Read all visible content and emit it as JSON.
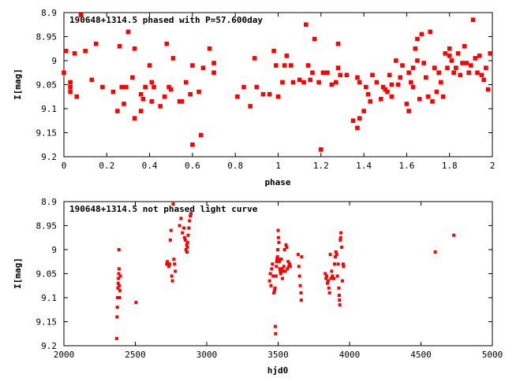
{
  "marker_color": "#ff0000",
  "chart_data": [
    {
      "type": "scatter",
      "title": "190648+1314.5 phased with P=57.600day",
      "xlabel": "phase",
      "ylabel": "I[mag]",
      "xlim": [
        0,
        2
      ],
      "ylim": [
        9.2,
        8.9
      ],
      "y_inverted": true,
      "xticks": [
        "0",
        "0.2",
        "0.4",
        "0.6",
        "0.8",
        "1",
        "1.2",
        "1.4",
        "1.6",
        "1.8",
        "2"
      ],
      "yticks": [
        "8.9",
        "8.95",
        "9",
        "9.05",
        "9.1",
        "9.15",
        "9.2"
      ],
      "grid": false,
      "legend": "none",
      "points": [
        [
          0.0,
          9.025
        ],
        [
          0.01,
          8.98
        ],
        [
          0.03,
          9.045
        ],
        [
          0.03,
          9.055
        ],
        [
          0.03,
          9.065
        ],
        [
          0.05,
          8.985
        ],
        [
          0.06,
          9.075
        ],
        [
          0.08,
          8.905
        ],
        [
          0.1,
          8.98
        ],
        [
          0.13,
          9.04
        ],
        [
          0.15,
          8.965
        ],
        [
          0.18,
          9.055
        ],
        [
          0.23,
          9.065
        ],
        [
          0.25,
          9.105
        ],
        [
          0.26,
          8.97
        ],
        [
          0.27,
          9.055
        ],
        [
          0.28,
          9.09
        ],
        [
          0.29,
          9.055
        ],
        [
          0.3,
          8.94
        ],
        [
          0.32,
          9.035
        ],
        [
          0.33,
          9.12
        ],
        [
          0.33,
          8.975
        ],
        [
          0.36,
          9.07
        ],
        [
          0.36,
          9.105
        ],
        [
          0.37,
          9.08
        ],
        [
          0.38,
          9.055
        ],
        [
          0.4,
          9.01
        ],
        [
          0.41,
          9.085
        ],
        [
          0.41,
          9.045
        ],
        [
          0.42,
          9.055
        ],
        [
          0.45,
          9.095
        ],
        [
          0.47,
          9.075
        ],
        [
          0.48,
          8.965
        ],
        [
          0.49,
          9.055
        ],
        [
          0.5,
          9.06
        ],
        [
          0.51,
          8.995
        ],
        [
          0.54,
          9.085
        ],
        [
          0.55,
          9.085
        ],
        [
          0.57,
          9.045
        ],
        [
          0.59,
          9.07
        ],
        [
          0.6,
          9.175
        ],
        [
          0.6,
          9.01
        ],
        [
          0.63,
          9.065
        ],
        [
          0.64,
          9.155
        ],
        [
          0.65,
          9.015
        ],
        [
          0.68,
          8.975
        ],
        [
          0.7,
          9.025
        ],
        [
          0.7,
          9.005
        ],
        [
          0.81,
          9.075
        ],
        [
          0.84,
          9.055
        ],
        [
          0.87,
          9.095
        ],
        [
          0.89,
          8.995
        ],
        [
          0.9,
          9.055
        ],
        [
          0.93,
          9.07
        ],
        [
          0.96,
          9.07
        ],
        [
          0.98,
          8.98
        ],
        [
          0.99,
          9.01
        ],
        [
          1.0,
          9.075
        ],
        [
          1.02,
          9.045
        ],
        [
          1.03,
          9.01
        ],
        [
          1.04,
          8.99
        ],
        [
          1.06,
          9.01
        ],
        [
          1.07,
          9.045
        ],
        [
          1.1,
          9.04
        ],
        [
          1.12,
          9.045
        ],
        [
          1.13,
          8.925
        ],
        [
          1.14,
          9.01
        ],
        [
          1.15,
          9.04
        ],
        [
          1.16,
          9.025
        ],
        [
          1.17,
          8.955
        ],
        [
          1.19,
          9.045
        ],
        [
          1.2,
          9.185
        ],
        [
          1.21,
          9.025
        ],
        [
          1.23,
          9.025
        ],
        [
          1.25,
          9.05
        ],
        [
          1.27,
          9.045
        ],
        [
          1.28,
          9.015
        ],
        [
          1.28,
          8.965
        ],
        [
          1.29,
          9.03
        ],
        [
          1.32,
          9.03
        ],
        [
          1.35,
          9.125
        ],
        [
          1.37,
          9.14
        ],
        [
          1.37,
          9.035
        ],
        [
          1.38,
          9.045
        ],
        [
          1.38,
          9.12
        ],
        [
          1.4,
          9.105
        ],
        [
          1.41,
          9.055
        ],
        [
          1.42,
          9.07
        ],
        [
          1.43,
          9.085
        ],
        [
          1.44,
          9.03
        ],
        [
          1.46,
          9.045
        ],
        [
          1.48,
          9.08
        ],
        [
          1.49,
          9.055
        ],
        [
          1.5,
          9.06
        ],
        [
          1.51,
          9.065
        ],
        [
          1.52,
          9.03
        ],
        [
          1.53,
          9.05
        ],
        [
          1.53,
          9.075
        ],
        [
          1.55,
          9.0
        ],
        [
          1.56,
          9.05
        ],
        [
          1.57,
          9.035
        ],
        [
          1.58,
          9.01
        ],
        [
          1.6,
          9.09
        ],
        [
          1.61,
          9.105
        ],
        [
          1.61,
          9.025
        ],
        [
          1.62,
          9.045
        ],
        [
          1.63,
          9.055
        ],
        [
          1.63,
          9.015
        ],
        [
          1.64,
          8.975
        ],
        [
          1.65,
          9.0
        ],
        [
          1.65,
          8.955
        ],
        [
          1.66,
          9.08
        ],
        [
          1.67,
          8.945
        ],
        [
          1.68,
          9.005
        ],
        [
          1.69,
          9.035
        ],
        [
          1.7,
          9.075
        ],
        [
          1.71,
          8.94
        ],
        [
          1.72,
          9.085
        ],
        [
          1.73,
          9.015
        ],
        [
          1.74,
          9.065
        ],
        [
          1.75,
          9.025
        ],
        [
          1.76,
          9.045
        ],
        [
          1.77,
          9.075
        ],
        [
          1.78,
          8.985
        ],
        [
          1.79,
          9.015
        ],
        [
          1.8,
          8.975
        ],
        [
          1.8,
          8.99
        ],
        [
          1.81,
          9.0
        ],
        [
          1.82,
          9.025
        ],
        [
          1.83,
          9.015
        ],
        [
          1.84,
          8.985
        ],
        [
          1.85,
          9.03
        ],
        [
          1.86,
          9.005
        ],
        [
          1.87,
          8.97
        ],
        [
          1.88,
          9.005
        ],
        [
          1.89,
          9.025
        ],
        [
          1.9,
          9.01
        ],
        [
          1.91,
          8.915
        ],
        [
          1.92,
          8.995
        ],
        [
          1.93,
          9.025
        ],
        [
          1.94,
          8.99
        ],
        [
          1.95,
          9.03
        ],
        [
          1.96,
          9.04
        ],
        [
          1.97,
          9.015
        ],
        [
          1.98,
          9.06
        ],
        [
          1.99,
          8.985
        ]
      ]
    },
    {
      "type": "scatter",
      "title": "190648+1314.5 not phased light curve",
      "xlabel": "hjd0",
      "ylabel": "I[mag]",
      "xlim": [
        2000,
        5000
      ],
      "ylim": [
        9.2,
        8.9
      ],
      "y_inverted": true,
      "xticks": [
        "2000",
        "2500",
        "3000",
        "3500",
        "4000",
        "4500",
        "5000"
      ],
      "yticks": [
        "8.9",
        "8.95",
        "9",
        "9.05",
        "9.1",
        "9.15",
        "9.2"
      ],
      "grid": false,
      "legend": "none",
      "points": [
        [
          2370,
          9.185
        ],
        [
          2372,
          9.14
        ],
        [
          2374,
          9.12
        ],
        [
          2376,
          9.1
        ],
        [
          2378,
          9.08
        ],
        [
          2380,
          9.07
        ],
        [
          2382,
          9.06
        ],
        [
          2384,
          9.05
        ],
        [
          2386,
          9.04
        ],
        [
          2388,
          9.075
        ],
        [
          2390,
          9.1
        ],
        [
          2385,
          9.0
        ],
        [
          2392,
          9.085
        ],
        [
          2395,
          9.055
        ],
        [
          2505,
          9.11
        ],
        [
          2720,
          9.03
        ],
        [
          2725,
          9.025
        ],
        [
          2730,
          9.03
        ],
        [
          2735,
          9.035
        ],
        [
          2740,
          9.03
        ],
        [
          2745,
          8.98
        ],
        [
          2750,
          8.96
        ],
        [
          2755,
          9.055
        ],
        [
          2760,
          9.065
        ],
        [
          2765,
          8.905
        ],
        [
          2770,
          9.02
        ],
        [
          2775,
          9.03
        ],
        [
          2780,
          9.045
        ],
        [
          2810,
          8.95
        ],
        [
          2820,
          8.935
        ],
        [
          2830,
          8.965
        ],
        [
          2840,
          8.955
        ],
        [
          2845,
          8.975
        ],
        [
          2850,
          8.98
        ],
        [
          2855,
          9.0
        ],
        [
          2860,
          8.99
        ],
        [
          2862,
          9.005
        ],
        [
          2864,
          8.995
        ],
        [
          2866,
          8.985
        ],
        [
          2870,
          8.97
        ],
        [
          2875,
          8.955
        ],
        [
          2880,
          8.94
        ],
        [
          2885,
          8.93
        ],
        [
          2890,
          8.925
        ],
        [
          3440,
          9.065
        ],
        [
          3445,
          9.05
        ],
        [
          3450,
          9.075
        ],
        [
          3455,
          9.04
        ],
        [
          3460,
          9.03
        ],
        [
          3465,
          9.055
        ],
        [
          3470,
          9.09
        ],
        [
          3475,
          9.085
        ],
        [
          3478,
          9.08
        ],
        [
          3480,
          9.16
        ],
        [
          3482,
          9.175
        ],
        [
          3485,
          9.055
        ],
        [
          3488,
          9.035
        ],
        [
          3490,
          9.025
        ],
        [
          3492,
          9.02
        ],
        [
          3495,
          9.015
        ],
        [
          3498,
          9.0
        ],
        [
          3500,
          8.96
        ],
        [
          3502,
          8.975
        ],
        [
          3505,
          8.985
        ],
        [
          3508,
          9.025
        ],
        [
          3510,
          9.02
        ],
        [
          3512,
          9.04
        ],
        [
          3515,
          9.045
        ],
        [
          3518,
          9.05
        ],
        [
          3520,
          9.04
        ],
        [
          3522,
          9.02
        ],
        [
          3525,
          9.045
        ],
        [
          3528,
          9.04
        ],
        [
          3530,
          9.06
        ],
        [
          3535,
          9.045
        ],
        [
          3540,
          9.035
        ],
        [
          3545,
          9.0
        ],
        [
          3550,
          9.045
        ],
        [
          3555,
          8.99
        ],
        [
          3560,
          8.995
        ],
        [
          3565,
          9.04
        ],
        [
          3570,
          9.025
        ],
        [
          3575,
          9.035
        ],
        [
          3580,
          9.03
        ],
        [
          3585,
          9.035
        ],
        [
          3640,
          9.01
        ],
        [
          3645,
          9.035
        ],
        [
          3650,
          9.055
        ],
        [
          3655,
          9.075
        ],
        [
          3660,
          9.09
        ],
        [
          3662,
          9.105
        ],
        [
          3665,
          9.015
        ],
        [
          3830,
          9.05
        ],
        [
          3835,
          9.06
        ],
        [
          3840,
          9.055
        ],
        [
          3845,
          9.07
        ],
        [
          3850,
          9.065
        ],
        [
          3855,
          9.08
        ],
        [
          3860,
          9.09
        ],
        [
          3865,
          9.01
        ],
        [
          3870,
          9.06
        ],
        [
          3875,
          9.045
        ],
        [
          3880,
          9.055
        ],
        [
          3890,
          9.06
        ],
        [
          3895,
          9.03
        ],
        [
          3900,
          9.015
        ],
        [
          3905,
          9.005
        ],
        [
          3910,
          9.01
        ],
        [
          3915,
          9.055
        ],
        [
          3920,
          9.03
        ],
        [
          3925,
          9.08
        ],
        [
          3928,
          9.095
        ],
        [
          3930,
          9.105
        ],
        [
          3932,
          9.115
        ],
        [
          3935,
          8.98
        ],
        [
          3938,
          8.975
        ],
        [
          3940,
          8.965
        ],
        [
          3945,
          8.995
        ],
        [
          3950,
          9.065
        ],
        [
          3955,
          9.03
        ],
        [
          3958,
          9.035
        ],
        [
          4600,
          9.005
        ],
        [
          4730,
          8.97
        ]
      ]
    }
  ]
}
